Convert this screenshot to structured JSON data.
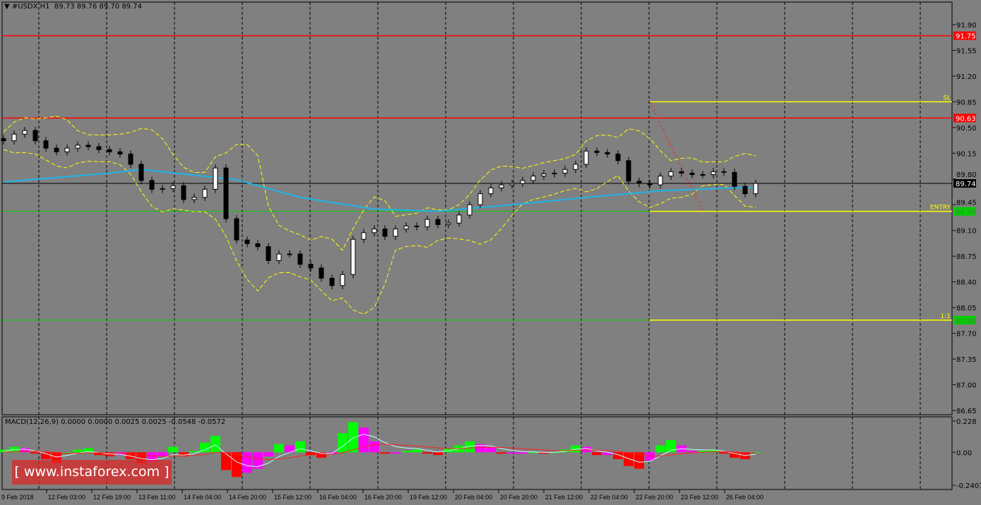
{
  "header": {
    "symbol": "#USDX,H1",
    "ohlc": "89.73 89.76 89.70 89.74"
  },
  "macd_label": "MACD(12,26,9) 0.0000 0.0000 0.0025 0.0025 -0.0548 -0.0572",
  "watermark": "[ www.instaforex.com ]",
  "colors": {
    "background": "#808080",
    "resistance": "#ff0000",
    "support": "#00c000",
    "trade_levels": "#ffff00",
    "moving_average": "#1fb4e8",
    "bands": "#ffff00",
    "macd_up": "#00ff00",
    "macd_down": "#ff00ff",
    "macd_neg": "#ff0000"
  },
  "chart_data": {
    "type": "candlestick",
    "price_axis": {
      "range": [
        86.65,
        91.9
      ],
      "ticks": [
        "91.90",
        "91.55",
        "91.20",
        "90.85",
        "90.50",
        "90.15",
        "89.80",
        "89.45",
        "89.10",
        "88.75",
        "88.40",
        "88.05",
        "87.70",
        "87.35",
        "87.00",
        "86.65"
      ]
    },
    "time_labels": [
      "9 Feb 2018",
      "12 Feb 03:00",
      "12 Feb 19:00",
      "13 Feb 11:00",
      "14 Feb 04:00",
      "14 Feb 20:00",
      "15 Feb 12:00",
      "16 Feb 04:00",
      "16 Feb 20:00",
      "19 Feb 12:00",
      "20 Feb 04:00",
      "20 Feb 20:00",
      "21 Feb 12:00",
      "22 Feb 04:00",
      "22 Feb 20:00",
      "23 Feb 12:00",
      "26 Feb 04:00"
    ],
    "closes": [
      90.32,
      90.41,
      90.46,
      90.32,
      90.22,
      90.17,
      90.22,
      90.26,
      90.24,
      90.2,
      90.17,
      90.14,
      90.0,
      89.78,
      89.66,
      89.67,
      89.71,
      89.52,
      89.55,
      89.66,
      89.95,
      89.26,
      88.97,
      88.92,
      88.88,
      88.69,
      88.78,
      88.78,
      88.64,
      88.59,
      88.45,
      88.35,
      88.5,
      88.98,
      89.07,
      89.12,
      89.02,
      89.12,
      89.16,
      89.15,
      89.25,
      89.18,
      89.2,
      89.31,
      89.45,
      89.6,
      89.68,
      89.72,
      89.74,
      89.78,
      89.84,
      89.87,
      89.88,
      89.93,
      90.0,
      90.18,
      90.16,
      90.14,
      90.05,
      89.77,
      89.74,
      89.72,
      89.84,
      89.9,
      89.88,
      89.86,
      89.86,
      89.9,
      89.89,
      89.7,
      89.6,
      89.74
    ],
    "moving_average": [
      [
        0,
        89.76
      ],
      [
        10,
        89.88
      ],
      [
        13,
        89.93
      ],
      [
        22,
        89.79
      ],
      [
        28,
        89.55
      ],
      [
        35,
        89.39
      ],
      [
        41,
        89.36
      ],
      [
        48,
        89.45
      ],
      [
        55,
        89.55
      ],
      [
        62,
        89.64
      ],
      [
        71,
        89.69
      ]
    ],
    "levels": [
      {
        "label": "91.75",
        "price": 91.75,
        "kind": "resistance"
      },
      {
        "label": "90.63",
        "price": 90.63,
        "kind": "resistance"
      },
      {
        "label": "89.36",
        "price": 89.36,
        "kind": "support"
      },
      {
        "label": "87.88",
        "price": 87.88,
        "kind": "support"
      }
    ],
    "trade_lines": [
      {
        "label": "SL",
        "price": 90.85
      },
      {
        "label": "ENTRY",
        "price": 89.36
      },
      {
        "label": "1:1",
        "price": 87.88
      }
    ],
    "trade_start_bar": 62,
    "current_price": {
      "label": "89.74",
      "price": 89.74
    },
    "macd": {
      "axis": {
        "range": [
          -0.2407,
          0.228
        ],
        "ticks": [
          "0.228",
          "0.00",
          "-0.2407"
        ]
      },
      "histogram": [
        0.02,
        0.04,
        0.03,
        -0.01,
        -0.05,
        -0.08,
        0.0,
        0.02,
        0.03,
        -0.02,
        -0.03,
        -0.02,
        -0.05,
        -0.08,
        -0.07,
        -0.03,
        0.04,
        -0.03,
        0.01,
        0.07,
        0.12,
        -0.13,
        -0.18,
        -0.15,
        -0.12,
        -0.03,
        0.06,
        0.05,
        0.08,
        -0.02,
        -0.04,
        -0.01,
        0.14,
        0.22,
        0.18,
        0.08,
        -0.01,
        -0.01,
        0.01,
        0.02,
        -0.01,
        -0.02,
        0.03,
        0.05,
        0.08,
        0.06,
        0.04,
        -0.01,
        -0.01,
        -0.01,
        0.0,
        -0.01,
        0.0,
        0.02,
        0.05,
        0.04,
        -0.02,
        -0.02,
        -0.05,
        -0.1,
        -0.12,
        -0.06,
        0.05,
        0.09,
        0.05,
        0.01,
        0.01,
        0.02,
        -0.01,
        -0.04,
        -0.05,
        0.0
      ]
    }
  }
}
